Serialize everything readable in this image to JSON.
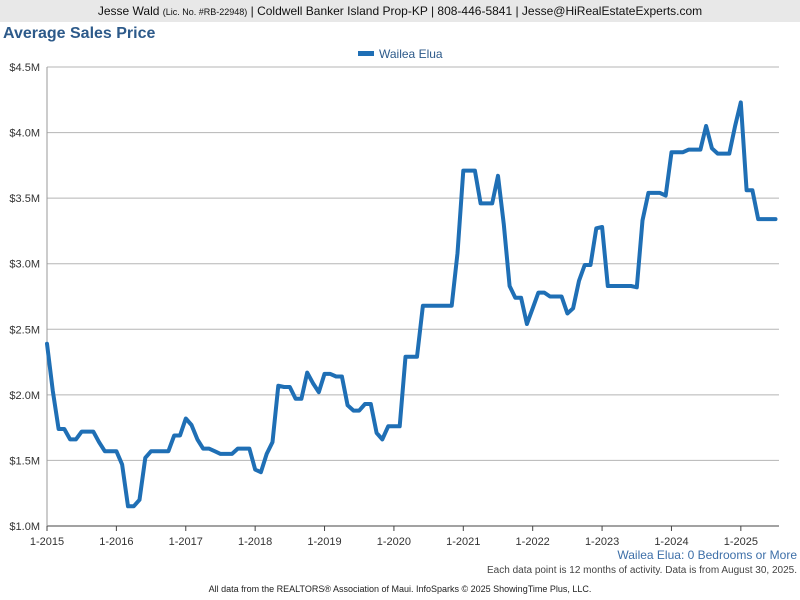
{
  "header": {
    "name": "Jesse Wald",
    "license": "(Lic. No. #RB-22948)",
    "rest": "| Coldwell Banker Island Prop-KP | 808-446-5841 | Jesse@HiRealEstateExperts.com"
  },
  "chart_data": {
    "type": "line",
    "title": "Average Sales Price",
    "legend_position": "top-center",
    "grid": true,
    "ylim": [
      1.0,
      4.5
    ],
    "xlim": [
      2015.0,
      2025.55
    ],
    "y_ticks": [
      {
        "value": 1.0,
        "label": "$1.0M"
      },
      {
        "value": 1.5,
        "label": "$1.5M"
      },
      {
        "value": 2.0,
        "label": "$2.0M"
      },
      {
        "value": 2.5,
        "label": "$2.5M"
      },
      {
        "value": 3.0,
        "label": "$3.0M"
      },
      {
        "value": 3.5,
        "label": "$3.5M"
      },
      {
        "value": 4.0,
        "label": "$4.0M"
      },
      {
        "value": 4.5,
        "label": "$4.5M"
      }
    ],
    "x_ticks": [
      {
        "value": 2015,
        "label": "1-2015"
      },
      {
        "value": 2016,
        "label": "1-2016"
      },
      {
        "value": 2017,
        "label": "1-2017"
      },
      {
        "value": 2018,
        "label": "1-2018"
      },
      {
        "value": 2019,
        "label": "1-2019"
      },
      {
        "value": 2020,
        "label": "1-2020"
      },
      {
        "value": 2021,
        "label": "1-2021"
      },
      {
        "value": 2022,
        "label": "1-2022"
      },
      {
        "value": 2023,
        "label": "1-2023"
      },
      {
        "value": 2024,
        "label": "1-2024"
      },
      {
        "value": 2025,
        "label": "1-2025"
      }
    ],
    "series": [
      {
        "name": "Wailea Elua",
        "color": "#1f6fb5",
        "x": [
          2015.0,
          2015.083,
          2015.167,
          2015.25,
          2015.333,
          2015.417,
          2015.5,
          2015.583,
          2015.667,
          2015.75,
          2015.833,
          2015.917,
          2016.0,
          2016.083,
          2016.167,
          2016.25,
          2016.333,
          2016.417,
          2016.5,
          2016.583,
          2016.667,
          2016.75,
          2016.833,
          2016.917,
          2017.0,
          2017.083,
          2017.167,
          2017.25,
          2017.333,
          2017.417,
          2017.5,
          2017.583,
          2017.667,
          2017.75,
          2017.833,
          2017.917,
          2018.0,
          2018.083,
          2018.167,
          2018.25,
          2018.333,
          2018.417,
          2018.5,
          2018.583,
          2018.667,
          2018.75,
          2018.833,
          2018.917,
          2019.0,
          2019.083,
          2019.167,
          2019.25,
          2019.333,
          2019.417,
          2019.5,
          2019.583,
          2019.667,
          2019.75,
          2019.833,
          2019.917,
          2020.0,
          2020.083,
          2020.167,
          2020.25,
          2020.333,
          2020.417,
          2020.5,
          2020.583,
          2020.667,
          2020.75,
          2020.833,
          2020.917,
          2021.0,
          2021.083,
          2021.167,
          2021.25,
          2021.333,
          2021.417,
          2021.5,
          2021.583,
          2021.667,
          2021.75,
          2021.833,
          2021.917,
          2022.0,
          2022.083,
          2022.167,
          2022.25,
          2022.333,
          2022.417,
          2022.5,
          2022.583,
          2022.667,
          2022.75,
          2022.833,
          2022.917,
          2023.0,
          2023.083,
          2023.167,
          2023.25,
          2023.333,
          2023.417,
          2023.5,
          2023.583,
          2023.667,
          2023.75,
          2023.833,
          2023.917,
          2024.0,
          2024.083,
          2024.167,
          2024.25,
          2024.333,
          2024.417,
          2024.5,
          2024.583,
          2024.667,
          2024.75,
          2024.833,
          2024.917,
          2025.0,
          2025.083,
          2025.167,
          2025.25,
          2025.333,
          2025.417,
          2025.5
        ],
        "values": [
          2.39,
          2.03,
          1.74,
          1.74,
          1.66,
          1.66,
          1.72,
          1.72,
          1.72,
          1.64,
          1.57,
          1.57,
          1.57,
          1.47,
          1.15,
          1.15,
          1.2,
          1.52,
          1.57,
          1.57,
          1.57,
          1.57,
          1.69,
          1.69,
          1.82,
          1.77,
          1.66,
          1.59,
          1.59,
          1.57,
          1.55,
          1.55,
          1.55,
          1.59,
          1.59,
          1.59,
          1.43,
          1.41,
          1.55,
          1.64,
          2.07,
          2.06,
          2.06,
          1.97,
          1.97,
          2.17,
          2.09,
          2.02,
          2.16,
          2.16,
          2.14,
          2.14,
          1.92,
          1.88,
          1.88,
          1.93,
          1.93,
          1.71,
          1.66,
          1.76,
          1.76,
          1.76,
          2.29,
          2.29,
          2.29,
          2.68,
          2.68,
          2.68,
          2.68,
          2.68,
          2.68,
          3.08,
          3.71,
          3.71,
          3.71,
          3.46,
          3.46,
          3.46,
          3.67,
          3.3,
          2.83,
          2.74,
          2.74,
          2.54,
          2.66,
          2.78,
          2.78,
          2.75,
          2.75,
          2.75,
          2.62,
          2.66,
          2.87,
          2.99,
          2.99,
          3.27,
          3.28,
          2.83,
          2.83,
          2.83,
          2.83,
          2.83,
          2.82,
          3.33,
          3.54,
          3.54,
          3.54,
          3.52,
          3.85,
          3.85,
          3.85,
          3.87,
          3.87,
          3.87,
          4.05,
          3.88,
          3.84,
          3.84,
          3.84,
          4.05,
          4.23,
          3.56,
          3.56,
          3.34,
          3.34,
          3.34,
          3.34
        ]
      }
    ],
    "series_label": "Wailea Elua: 0 Bedrooms or More",
    "note": "Each data point is 12 months of activity. Data is from August 30, 2025."
  },
  "footer": "All data from the REALTORS® Association of Maui. InfoSparks © 2025 ShowingTime Plus, LLC."
}
